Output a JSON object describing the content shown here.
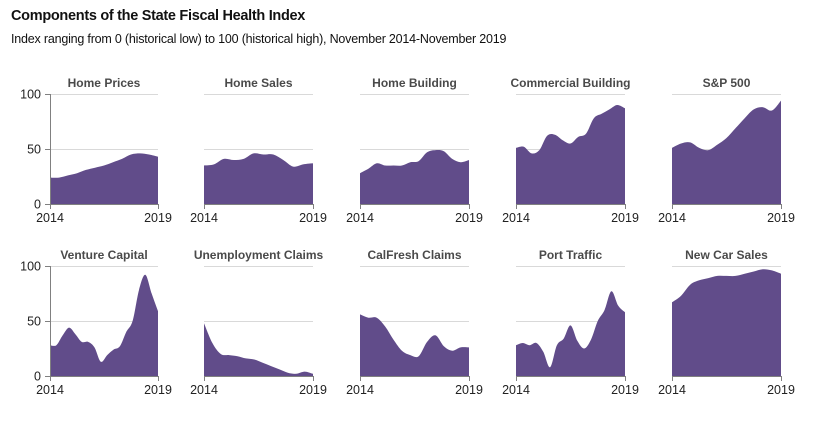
{
  "header": {
    "title": "Components of the State Fiscal Health Index",
    "subtitle": "Index ranging from 0 (historical low) to 100 (historical high), November 2014-November 2019"
  },
  "colors": {
    "area_fill": "#614c8a",
    "grid": "#d9d9d9",
    "axis": "#808080"
  },
  "chart_data": [
    {
      "type": "area",
      "title": "Home Prices",
      "x_start": 2014,
      "x_end": 2019,
      "xticks": [
        "2014",
        "2019"
      ],
      "yticks": [
        "0",
        "50",
        "100"
      ],
      "ylim": [
        0,
        100
      ],
      "grid": true,
      "values": [
        24,
        24,
        26,
        28,
        31,
        33,
        35,
        38,
        41,
        45,
        46,
        45,
        43
      ]
    },
    {
      "type": "area",
      "title": "Home Sales",
      "x_start": 2014,
      "x_end": 2019,
      "xticks": [
        "2014",
        "2019"
      ],
      "yticks": [],
      "ylim": [
        0,
        100
      ],
      "grid": true,
      "values": [
        35,
        36,
        41,
        40,
        41,
        46,
        45,
        45,
        40,
        34,
        36,
        37
      ]
    },
    {
      "type": "area",
      "title": "Home Building",
      "x_start": 2014,
      "x_end": 2019,
      "xticks": [
        "2014",
        "2019"
      ],
      "yticks": [],
      "ylim": [
        0,
        100
      ],
      "grid": true,
      "values": [
        28,
        32,
        37,
        35,
        35,
        35,
        38,
        39,
        47,
        49,
        48,
        41,
        38,
        40
      ]
    },
    {
      "type": "area",
      "title": "Commercial Building",
      "x_start": 2014,
      "x_end": 2019,
      "xticks": [
        "2014",
        "2019"
      ],
      "yticks": [],
      "ylim": [
        0,
        100
      ],
      "grid": true,
      "values": [
        51,
        52,
        46,
        49,
        62,
        63,
        58,
        55,
        61,
        64,
        78,
        82,
        86,
        90,
        87
      ]
    },
    {
      "type": "area",
      "title": "S&P 500",
      "x_start": 2014,
      "x_end": 2019,
      "xticks": [
        "2014",
        "2019"
      ],
      "yticks": [],
      "ylim": [
        0,
        100
      ],
      "grid": true,
      "values": [
        51,
        55,
        56,
        51,
        49,
        54,
        60,
        69,
        78,
        86,
        88,
        85,
        94
      ]
    },
    {
      "type": "area",
      "title": "Venture Capital",
      "x_start": 2014,
      "x_end": 2019,
      "xticks": [
        "2014",
        "2019"
      ],
      "yticks": [
        "0",
        "50",
        "100"
      ],
      "ylim": [
        0,
        100
      ],
      "grid": true,
      "values": [
        28,
        28,
        37,
        44,
        38,
        31,
        31,
        26,
        13,
        19,
        24,
        27,
        40,
        50,
        78,
        92,
        75,
        59
      ]
    },
    {
      "type": "area",
      "title": "Unemployment Claims",
      "x_start": 2014,
      "x_end": 2019,
      "xticks": [
        "2014",
        "2019"
      ],
      "yticks": [],
      "ylim": [
        0,
        100
      ],
      "grid": true,
      "values": [
        48,
        30,
        20,
        19,
        18,
        16,
        15,
        12,
        9,
        6,
        3,
        2,
        4,
        2
      ]
    },
    {
      "type": "area",
      "title": "CalFresh Claims",
      "x_start": 2014,
      "x_end": 2019,
      "xticks": [
        "2014",
        "2019"
      ],
      "yticks": [],
      "ylim": [
        0,
        100
      ],
      "grid": true,
      "values": [
        56,
        53,
        53,
        45,
        33,
        23,
        19,
        18,
        31,
        37,
        27,
        23,
        26,
        26
      ]
    },
    {
      "type": "area",
      "title": "Port Traffic",
      "x_start": 2014,
      "x_end": 2019,
      "xticks": [
        "2014",
        "2019"
      ],
      "yticks": [],
      "ylim": [
        0,
        100
      ],
      "grid": true,
      "values": [
        28,
        30,
        28,
        30,
        22,
        8,
        28,
        34,
        46,
        32,
        25,
        33,
        50,
        60,
        77,
        64,
        58
      ]
    },
    {
      "type": "area",
      "title": "New Car Sales",
      "x_start": 2014,
      "x_end": 2019,
      "xticks": [
        "2014",
        "2019"
      ],
      "yticks": [],
      "ylim": [
        0,
        100
      ],
      "grid": true,
      "values": [
        67,
        73,
        83,
        87,
        89,
        91,
        91,
        91,
        93,
        95,
        97,
        96,
        93
      ]
    }
  ]
}
